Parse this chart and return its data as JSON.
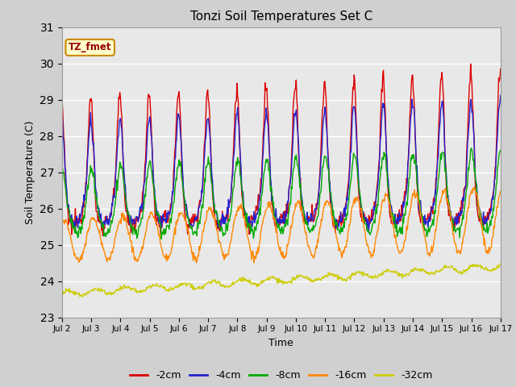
{
  "title": "Tonzi Soil Temperatures Set C",
  "xlabel": "Time",
  "ylabel": "Soil Temperature (C)",
  "ylim": [
    23.0,
    31.0
  ],
  "yticks": [
    23.0,
    24.0,
    25.0,
    26.0,
    27.0,
    28.0,
    29.0,
    30.0,
    31.0
  ],
  "xtick_labels": [
    "Jul 2",
    "Jul 3",
    "Jul 4",
    "Jul 5",
    "Jul 6",
    "Jul 7",
    "Jul 8",
    "Jul 9",
    "Jul 10",
    "Jul 11",
    "Jul 12",
    "Jul 13",
    "Jul 14",
    "Jul 15",
    "Jul 16",
    "Jul 17"
  ],
  "series_colors": [
    "#dd0000",
    "#2222cc",
    "#00aa00",
    "#ff8800",
    "#cccc00"
  ],
  "series_names": [
    "-2cm",
    "-4cm",
    "-8cm",
    "-16cm",
    "-32cm"
  ],
  "annotation_text": "TZ_fmet",
  "annotation_bg": "#ffffcc",
  "annotation_border": "#cc8800",
  "fig_bg": "#d0d0d0",
  "plot_bg": "#e8e8e8",
  "n_days": 15,
  "samples_per_day": 48
}
